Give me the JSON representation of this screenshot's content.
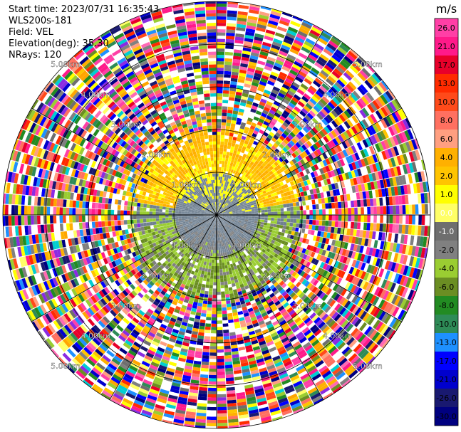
{
  "header": {
    "start_time": "Start time: 2023/07/31 16:35:43",
    "instrument": "WLS200s-181",
    "field": "Field: VEL",
    "elevation": "Elevation(deg): 35.30",
    "nrays": "NRays: 120"
  },
  "colorbar": {
    "unit": "m/s",
    "tick_labels": [
      "26.0",
      "21.0",
      "17.0",
      "13.0",
      "10.0",
      "8.0",
      "6.0",
      "4.0",
      "2.0",
      "1.0",
      "0.0",
      "-1.0",
      "-2.0",
      "-4.0",
      "-6.0",
      "-8.0",
      "-10.0",
      "-13.0",
      "-17.0",
      "-21.0",
      "-26.0",
      "-30.0"
    ],
    "colors": [
      "#ff3fa6",
      "#ff1a8a",
      "#e8002a",
      "#ff2b00",
      "#ff4a1a",
      "#ff7060",
      "#ff9f80",
      "#ffb000",
      "#ffc400",
      "#ffff00",
      "#ffff66",
      "#6e6e6e",
      "#808080",
      "#9acd32",
      "#6b8e23",
      "#228b22",
      "#2e8b57",
      "#1e90ff",
      "#0000ff",
      "#0000cd",
      "#191970",
      "#000080"
    ]
  },
  "chart_data": {
    "type": "ppi",
    "field": "VEL",
    "units": "m/s",
    "n_rays": 120,
    "elevation_deg": 35.3,
    "range_ring_labels": [
      "1.00km",
      "2.00km",
      "3.00km",
      "4.00km",
      "5.00km"
    ],
    "vmin": -30.0,
    "vmax": 30.0,
    "structure": {
      "near_zero_core_km": [
        0,
        1.0
      ],
      "north_positive_band_km": [
        0.9,
        2.0
      ],
      "north_velocity_ms": [
        1,
        6
      ],
      "south_negative_band_km": [
        0.9,
        2.0
      ],
      "south_velocity_ms": [
        -6,
        -1
      ],
      "noise_beyond_km": 2.0
    }
  }
}
